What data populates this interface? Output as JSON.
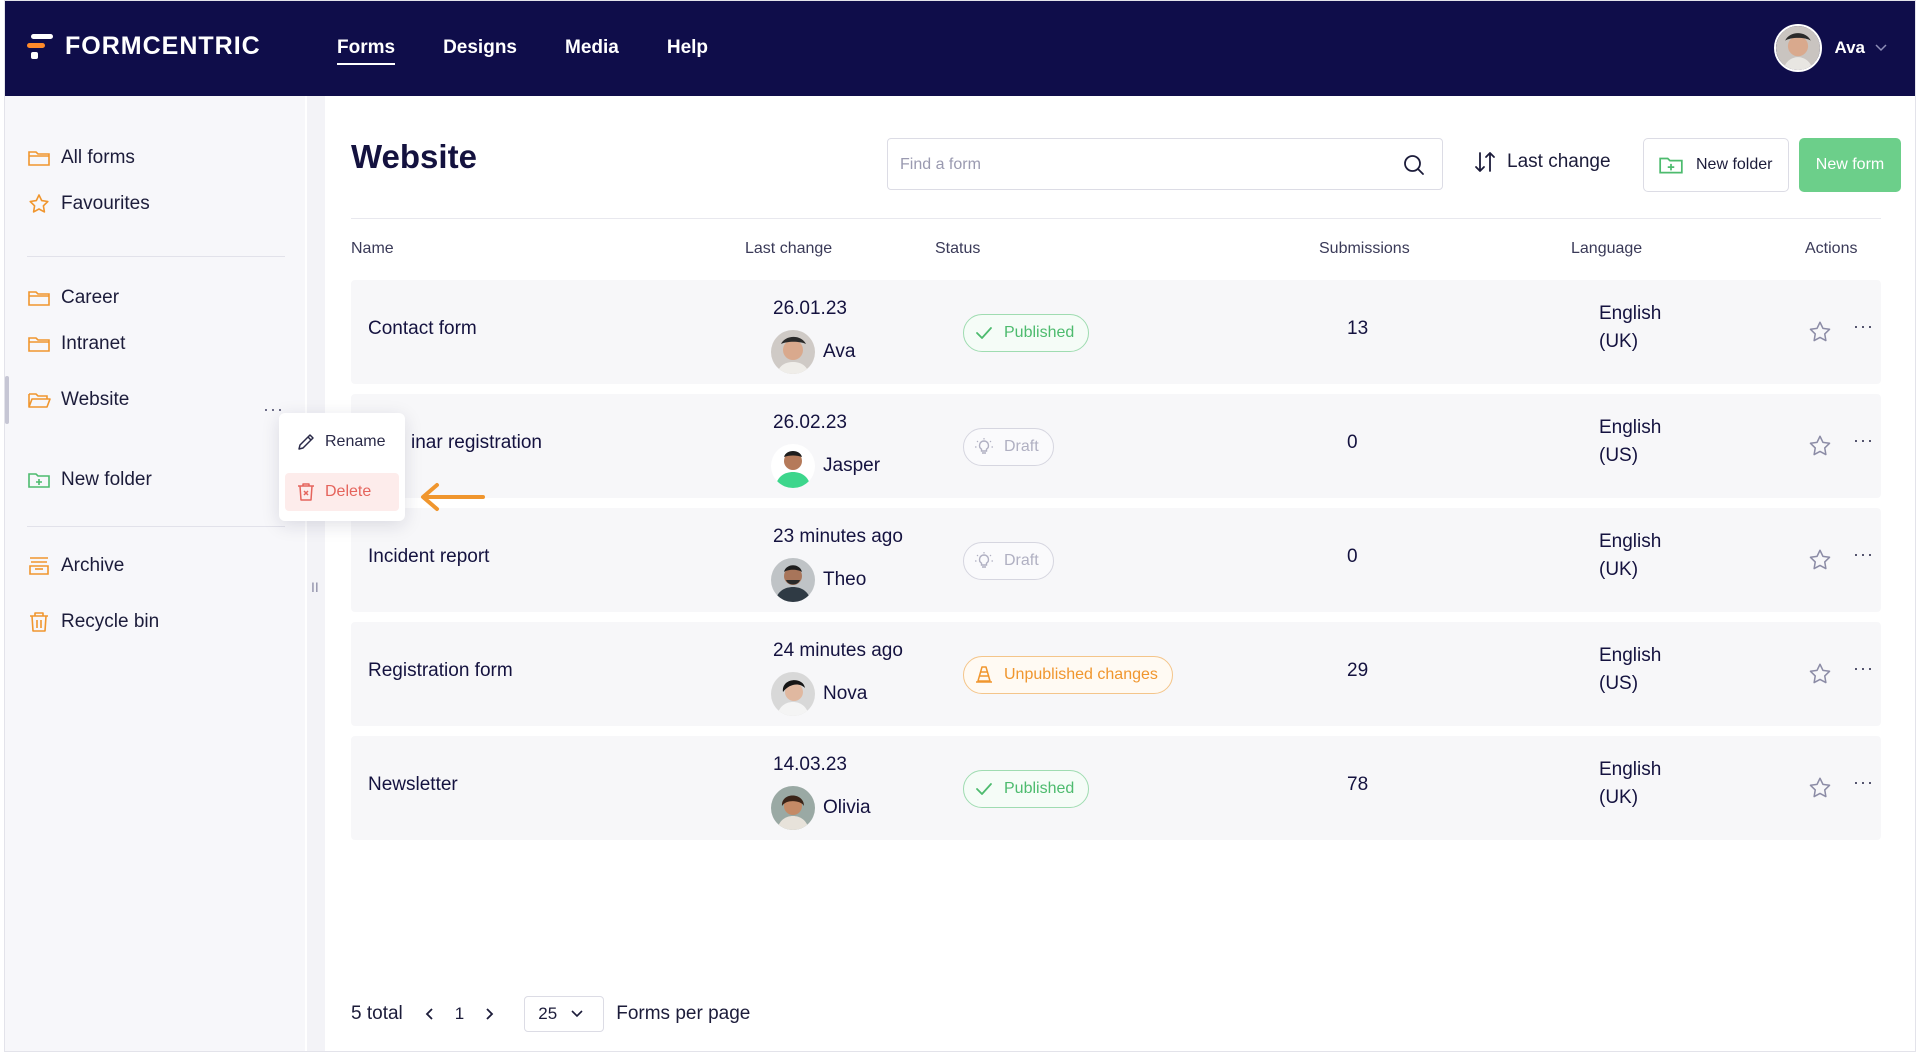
{
  "brand": {
    "name": "FORMCENTRIC"
  },
  "nav": {
    "items": [
      "Forms",
      "Designs",
      "Media",
      "Help"
    ],
    "active": "Forms"
  },
  "user": {
    "name": "Ava"
  },
  "sidebar": {
    "items": [
      {
        "label": "All forms",
        "icon": "folder-icon"
      },
      {
        "label": "Favourites",
        "icon": "star-icon"
      },
      {
        "label": "Career",
        "icon": "folder-icon"
      },
      {
        "label": "Intranet",
        "icon": "folder-icon"
      },
      {
        "label": "Website",
        "icon": "folder-open-icon"
      },
      {
        "label": "New folder",
        "icon": "folder-plus-icon"
      },
      {
        "label": "Archive",
        "icon": "archive-icon"
      },
      {
        "label": "Recycle bin",
        "icon": "trash-icon"
      }
    ],
    "selected": "Website",
    "more": "···",
    "collapse": "II"
  },
  "context_menu": {
    "rename": "Rename",
    "delete": "Delete"
  },
  "main": {
    "title": "Website",
    "search_placeholder": "Find a form",
    "sort_label": "Last change",
    "new_folder": "New folder",
    "new_form": "New form",
    "columns": [
      "Name",
      "Last change",
      "Status",
      "Submissions",
      "Language",
      "Actions"
    ],
    "rows": [
      {
        "name": "Contact form",
        "date": "26.01.23",
        "editor": "Ava",
        "status": "Published",
        "status_type": "published",
        "submissions": "13",
        "lang1": "English",
        "lang2": "(UK)"
      },
      {
        "name": "inar registration",
        "date": "26.02.23",
        "editor": "Jasper",
        "status": "Draft",
        "status_type": "draft",
        "submissions": "0",
        "lang1": "English",
        "lang2": "(US)"
      },
      {
        "name": "Incident report",
        "date": "23 minutes ago",
        "editor": "Theo",
        "status": "Draft",
        "status_type": "draft",
        "submissions": "0",
        "lang1": "English",
        "lang2": "(UK)"
      },
      {
        "name": "Registration form",
        "date": "24 minutes ago",
        "editor": "Nova",
        "status": "Unpublished changes",
        "status_type": "unpublished",
        "submissions": "29",
        "lang1": "English",
        "lang2": "(US)"
      },
      {
        "name": "Newsletter",
        "date": "14.03.23",
        "editor": "Olivia",
        "status": "Published",
        "status_type": "published",
        "submissions": "78",
        "lang1": "English",
        "lang2": "(UK)"
      }
    ]
  },
  "pagination": {
    "total": "5 total",
    "page": "1",
    "per_page": "25",
    "per_page_label": "Forms per page"
  },
  "colors": {
    "topbar": "#0f0d4a",
    "accent_green": "#6ccf8a",
    "published": "#4dbb6e",
    "unpublished": "#f0962e",
    "delete": "#e5645c",
    "brand_orange": "#ff8a2a"
  }
}
